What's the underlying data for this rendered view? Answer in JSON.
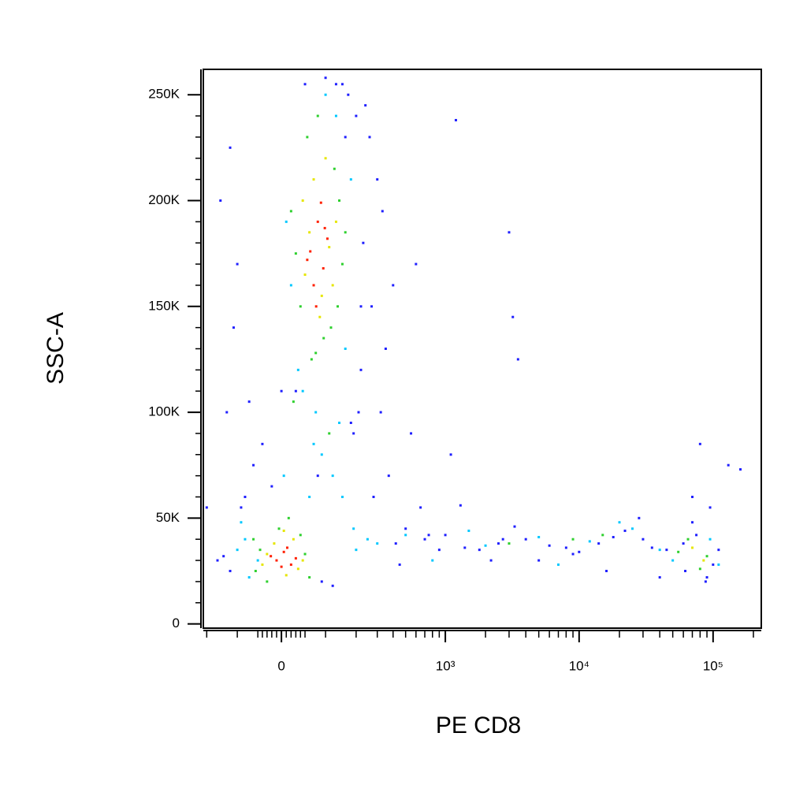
{
  "chart_data": {
    "type": "scatter",
    "x_label": "PE CD8",
    "y_label": "SSC-A",
    "xscale": "biexponential",
    "xlim": [
      -214,
      229000
    ],
    "ylim": [
      -2000,
      262000
    ],
    "xticks": [
      0,
      {
        "value": 1000,
        "label": "10³"
      },
      {
        "value": 10000,
        "label": "10⁴"
      },
      {
        "value": 100000,
        "label": "10⁵"
      }
    ],
    "xminorticks": [
      -200,
      -100,
      -50,
      -40,
      -30,
      -20,
      -10,
      10,
      20,
      30,
      40,
      50,
      100,
      200,
      300,
      400,
      500,
      600,
      700,
      800,
      900,
      2000,
      3000,
      4000,
      5000,
      6000,
      7000,
      8000,
      9000,
      20000,
      30000,
      40000,
      50000,
      60000,
      70000,
      80000,
      90000,
      200000
    ],
    "yticks": [
      0,
      {
        "value": 50000,
        "label": "50K"
      },
      {
        "value": 100000,
        "label": "100K"
      },
      {
        "value": 150000,
        "label": "150K"
      },
      {
        "value": 200000,
        "label": "200K"
      },
      {
        "value": 250000,
        "label": "250K"
      }
    ],
    "yminorticks": [
      10000,
      20000,
      30000,
      40000,
      60000,
      70000,
      80000,
      90000,
      110000,
      120000,
      130000,
      140000,
      160000,
      170000,
      180000,
      190000,
      210000,
      220000,
      230000,
      240000
    ],
    "series": [
      {
        "color": "#1f1fff",
        "x": [
          -150,
          -120,
          -100,
          -130,
          -80,
          200,
          230,
          260,
          300,
          350,
          400,
          500,
          600,
          700,
          900,
          1200,
          2700,
          3000,
          3200,
          3500,
          150,
          220,
          180,
          240,
          -140,
          -110,
          -60,
          -40,
          0,
          50,
          100,
          170,
          210,
          270,
          330,
          420,
          550,
          650,
          750,
          1100,
          1400,
          1800,
          2500,
          4000,
          6000,
          8000,
          10000,
          14000,
          18000,
          22000,
          30000,
          35000,
          45000,
          60000,
          75000,
          100000,
          130000,
          160000,
          70000,
          80000,
          88000,
          95000,
          62000,
          110000,
          -160,
          -20,
          30,
          80,
          130,
          160,
          190,
          220,
          -120,
          -90,
          -70,
          90,
          120,
          280,
          320,
          370,
          450,
          1000,
          1300,
          2200,
          3300,
          5000,
          9000,
          16000,
          28000,
          40000,
          70000,
          90000,
          -200
        ],
        "y": [
          200000,
          225000,
          170000,
          100000,
          60000,
          240000,
          180000,
          230000,
          210000,
          130000,
          160000,
          45000,
          170000,
          40000,
          35000,
          238000,
          40000,
          185000,
          145000,
          125000,
          255000,
          120000,
          95000,
          245000,
          32000,
          140000,
          75000,
          85000,
          110000,
          255000,
          258000,
          250000,
          100000,
          150000,
          195000,
          38000,
          90000,
          55000,
          42000,
          80000,
          36000,
          35000,
          38000,
          40000,
          37000,
          36000,
          34000,
          38000,
          41000,
          44000,
          40000,
          36000,
          35000,
          38000,
          42000,
          28000,
          75000,
          73000,
          48000,
          85000,
          20000,
          55000,
          25000,
          35000,
          30000,
          65000,
          110000,
          70000,
          255000,
          230000,
          90000,
          150000,
          25000,
          55000,
          105000,
          20000,
          18000,
          60000,
          100000,
          70000,
          28000,
          42000,
          56000,
          30000,
          46000,
          30000,
          33000,
          25000,
          50000,
          22000,
          60000,
          22000,
          55000
        ]
      },
      {
        "color": "#00c8ff",
        "x": [
          10,
          180,
          160,
          35,
          100,
          20,
          -50,
          -80,
          190,
          75,
          120,
          140,
          -70,
          -90,
          60,
          90,
          200,
          250,
          300,
          500,
          800,
          2000,
          5000,
          12000,
          25000,
          50000,
          95000,
          110000,
          -100,
          150,
          5,
          70,
          45,
          130,
          40000,
          20000,
          7000,
          1500
        ],
        "y": [
          190000,
          210000,
          130000,
          120000,
          250000,
          160000,
          30000,
          40000,
          45000,
          100000,
          70000,
          95000,
          22000,
          48000,
          60000,
          80000,
          35000,
          40000,
          38000,
          42000,
          30000,
          37000,
          41000,
          39000,
          45000,
          30000,
          40000,
          28000,
          35000,
          60000,
          70000,
          85000,
          110000,
          240000,
          35000,
          48000,
          28000,
          44000
        ]
      },
      {
        "color": "#2ed02e",
        "x": [
          30,
          55,
          140,
          150,
          80,
          115,
          40,
          95,
          125,
          65,
          20,
          160,
          135,
          75,
          -45,
          -55,
          50,
          60,
          -5,
          15,
          -30,
          40,
          55000,
          65000,
          90000,
          80000,
          3000,
          9000,
          15000,
          -60,
          25,
          110
        ],
        "y": [
          175000,
          230000,
          200000,
          170000,
          240000,
          140000,
          150000,
          135000,
          215000,
          125000,
          195000,
          185000,
          150000,
          128000,
          35000,
          25000,
          33000,
          22000,
          45000,
          50000,
          20000,
          42000,
          34000,
          40000,
          32000,
          26000,
          38000,
          40000,
          42000,
          40000,
          105000,
          90000
        ]
      },
      {
        "color": "#e6e600",
        "x": [
          45,
          70,
          110,
          120,
          85,
          60,
          100,
          130,
          50,
          90,
          -30,
          35,
          -15,
          25,
          45,
          10,
          -40,
          5,
          70000,
          85000
        ],
        "y": [
          200000,
          210000,
          178000,
          160000,
          145000,
          185000,
          220000,
          190000,
          165000,
          155000,
          33000,
          26000,
          38000,
          40000,
          30000,
          23000,
          28000,
          44000,
          36000,
          30000
        ]
      },
      {
        "color": "#ff2000",
        "x": [
          62,
          80,
          94,
          70,
          105,
          88,
          55,
          76,
          98,
          -10,
          5,
          20,
          -22,
          12,
          30,
          0
        ],
        "y": [
          176000,
          190000,
          168000,
          160000,
          182000,
          199000,
          172000,
          150000,
          187000,
          30000,
          34000,
          28000,
          32000,
          36000,
          31000,
          27000
        ]
      }
    ]
  }
}
